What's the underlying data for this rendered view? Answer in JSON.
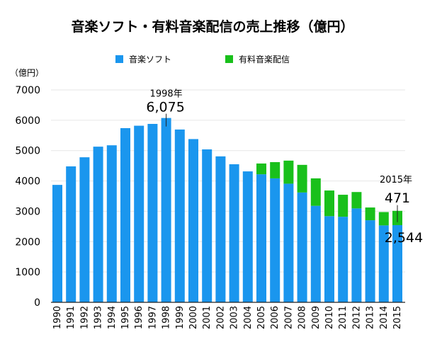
{
  "chart_data": {
    "type": "bar",
    "stacked": true,
    "title": "音楽ソフト・有料音楽配信の売上推移（億円）",
    "ylabel": "（億円）",
    "xlabel": "",
    "ylim": [
      0,
      7000
    ],
    "yticks": [
      0,
      1000,
      2000,
      3000,
      4000,
      5000,
      6000,
      7000
    ],
    "grid": true,
    "legend_position": "top-center",
    "categories": [
      "1990",
      "1991",
      "1992",
      "1993",
      "1994",
      "1995",
      "1996",
      "1997",
      "1998",
      "1999",
      "2000",
      "2001",
      "2002",
      "2003",
      "2004",
      "2005",
      "2006",
      "2007",
      "2008",
      "2009",
      "2010",
      "2011",
      "2012",
      "2013",
      "2014",
      "2015"
    ],
    "series": [
      {
        "name": "音楽ソフト",
        "color": "#1a96ee",
        "values": [
          3870,
          4480,
          4780,
          5130,
          5175,
          5740,
          5820,
          5880,
          6075,
          5695,
          5380,
          5040,
          4810,
          4550,
          4315,
          4220,
          4085,
          3910,
          3620,
          3180,
          2840,
          2820,
          3095,
          2705,
          2535,
          2544
        ]
      },
      {
        "name": "有料音楽配信",
        "color": "#19c01b",
        "values": [
          0,
          0,
          0,
          0,
          0,
          0,
          0,
          0,
          0,
          0,
          0,
          0,
          0,
          0,
          0,
          355,
          535,
          760,
          910,
          905,
          845,
          725,
          540,
          420,
          440,
          471
        ]
      }
    ],
    "annotations": [
      {
        "category": "1998",
        "year_label": "1998年",
        "value_label": "6,075",
        "target": "total"
      },
      {
        "category": "2015",
        "year_label": "2015年",
        "value_label": "471",
        "target": "total",
        "value2_label": "2,544"
      }
    ]
  }
}
